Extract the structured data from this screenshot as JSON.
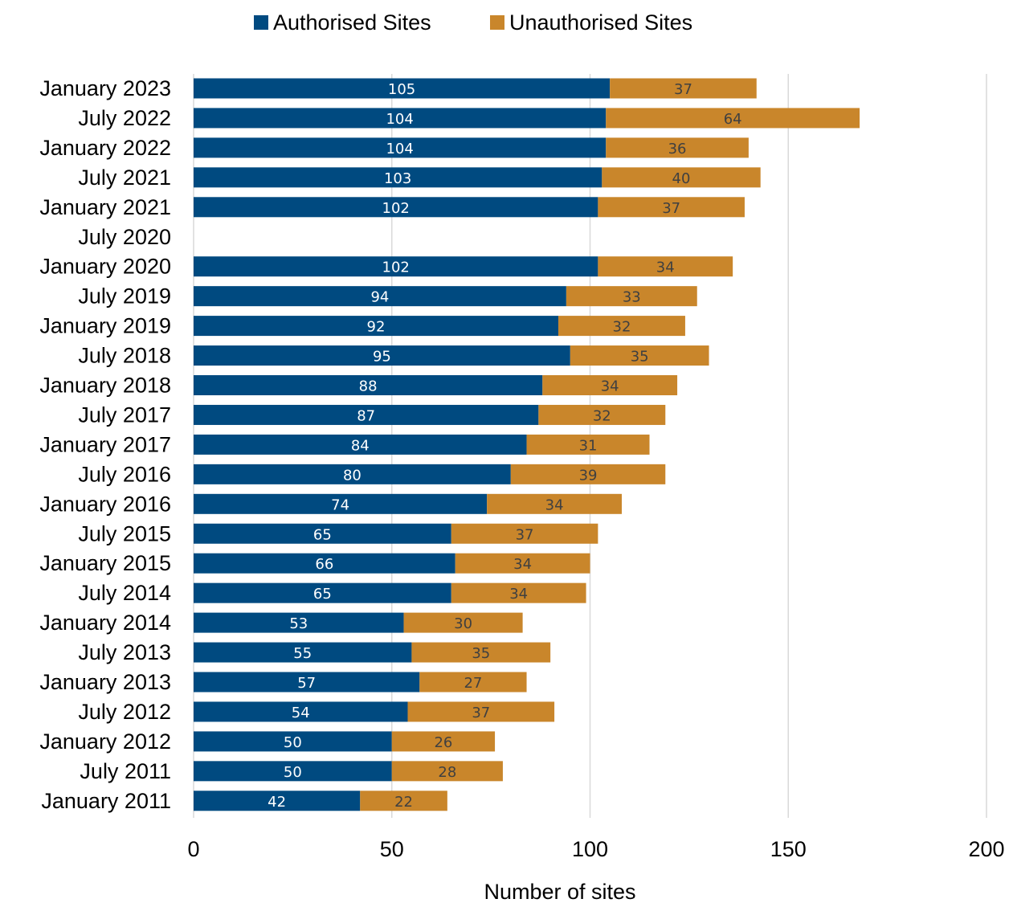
{
  "chart_data": {
    "type": "bar",
    "orientation": "horizontal",
    "stacked": true,
    "xlabel": "Number of sites",
    "xlim": [
      0,
      200
    ],
    "xticks": [
      "0",
      "50",
      "100",
      "150",
      "200"
    ],
    "grid": "vertical",
    "legend": "top",
    "categories": [
      "January 2023",
      "July 2022",
      "January 2022",
      "July 2021",
      "January 2021",
      "July 2020",
      "January 2020",
      "July 2019",
      "January 2019",
      "July 2018",
      "January 2018",
      "July 2017",
      "January 2017",
      "July 2016",
      "January 2016",
      "July 2015",
      "January 2015",
      "July 2014",
      "January 2014",
      "July 2013",
      "January 2013",
      "July 2012",
      "January 2012",
      "July 2011",
      "January 2011"
    ],
    "series": [
      {
        "name": "Authorised Sites",
        "color": "#004a80",
        "label_color": "#ffffff",
        "values": [
          105,
          104,
          104,
          103,
          102,
          null,
          102,
          94,
          92,
          95,
          88,
          87,
          84,
          80,
          74,
          65,
          66,
          65,
          53,
          55,
          57,
          54,
          50,
          50,
          42
        ]
      },
      {
        "name": "Unauthorised Sites",
        "color": "#c9862b",
        "label_color": "#404040",
        "values": [
          37,
          64,
          36,
          40,
          37,
          null,
          34,
          33,
          32,
          35,
          34,
          32,
          31,
          39,
          34,
          37,
          34,
          34,
          30,
          35,
          27,
          37,
          26,
          28,
          22
        ]
      }
    ]
  }
}
